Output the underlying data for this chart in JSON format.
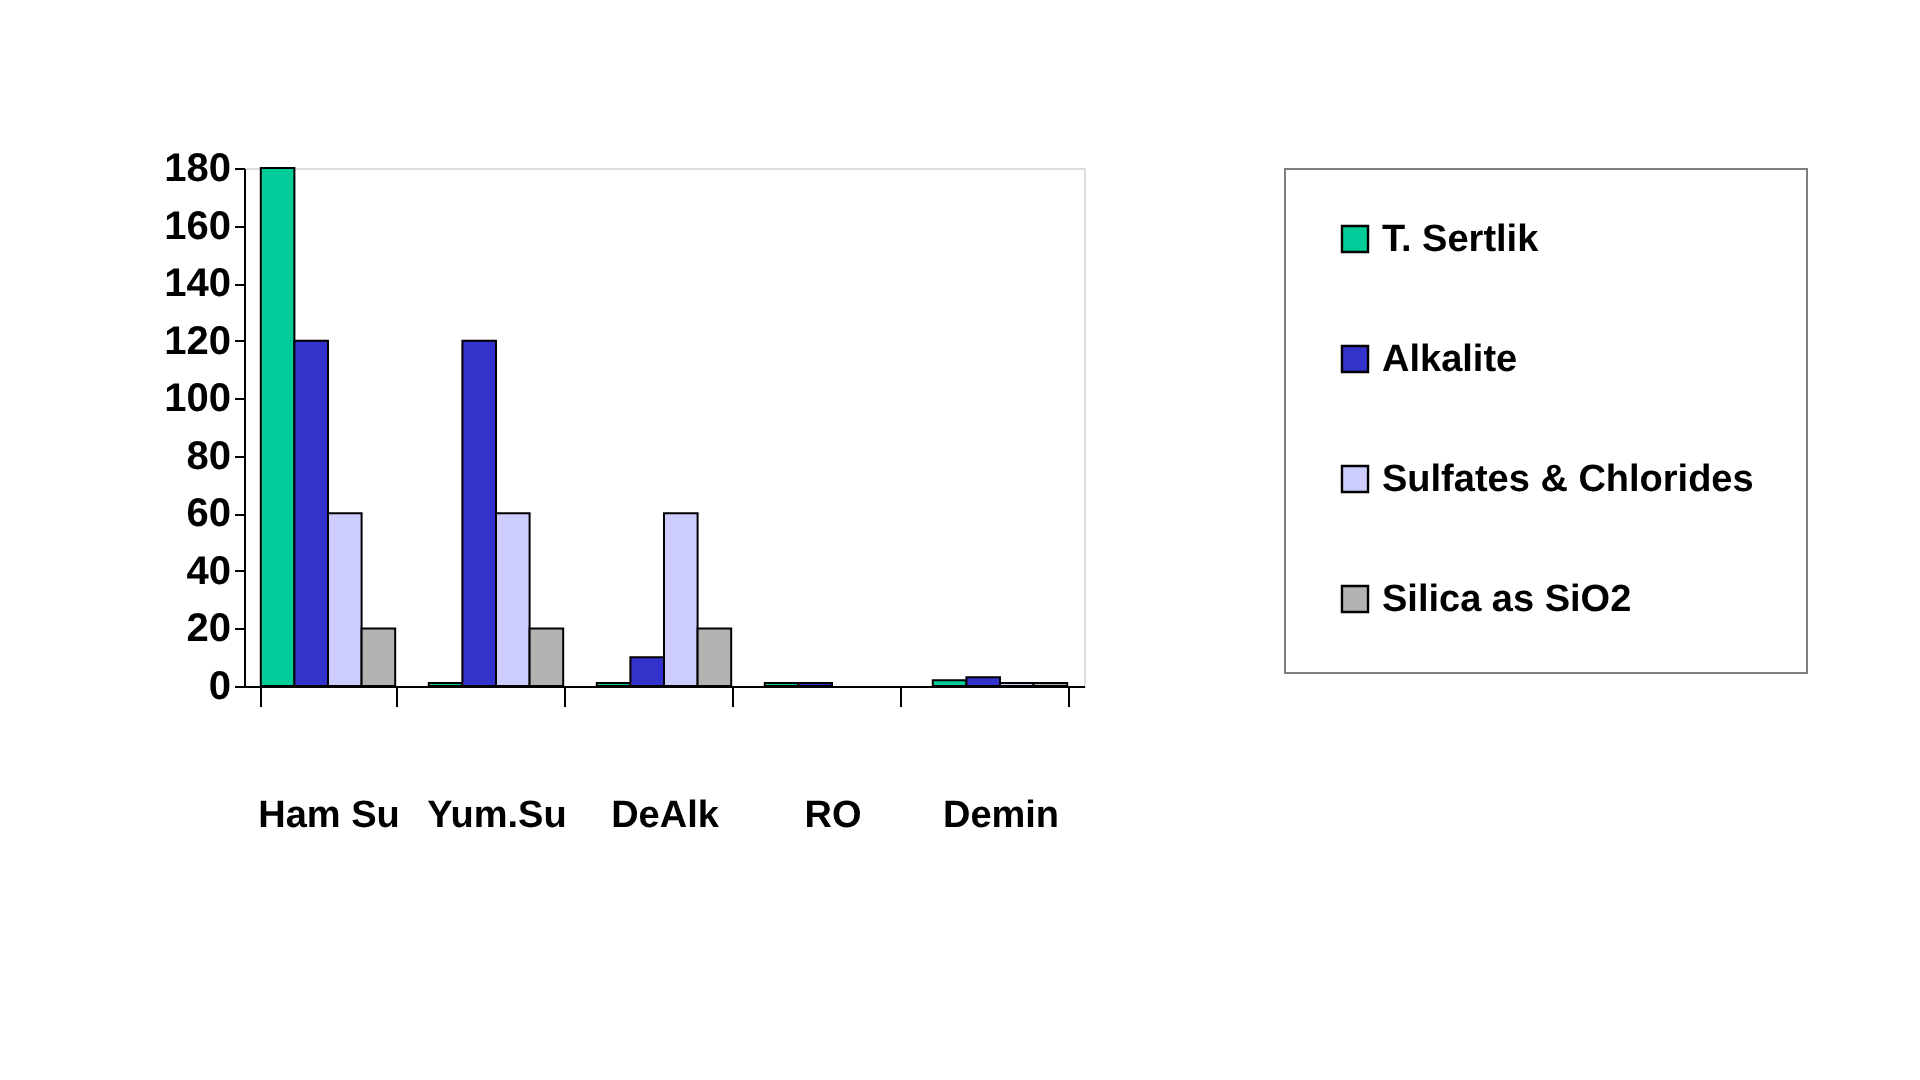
{
  "chart_data": {
    "type": "bar",
    "categories": [
      "Ham Su",
      "Yum.Su",
      "DeAlk",
      "RO",
      "Demin"
    ],
    "series": [
      {
        "name": "T. Sertlik",
        "color": "#00cc99",
        "values": [
          180,
          1,
          1,
          1,
          2
        ]
      },
      {
        "name": "Alkalite",
        "color": "#3333cc",
        "values": [
          120,
          120,
          10,
          1,
          3
        ]
      },
      {
        "name": "Sulfates & Chlorides",
        "color": "#ccccff",
        "values": [
          60,
          60,
          60,
          null,
          1
        ]
      },
      {
        "name": "Silica as SiO2",
        "color": "#b2b2b2",
        "values": [
          20,
          20,
          20,
          null,
          1
        ]
      }
    ],
    "ylim": [
      0,
      180
    ],
    "yticks": [
      0,
      20,
      40,
      60,
      80,
      100,
      120,
      140,
      160,
      180
    ],
    "grid": false,
    "legend": "right"
  }
}
